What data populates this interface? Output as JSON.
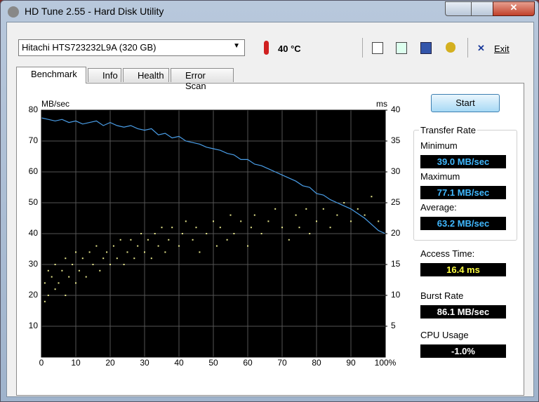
{
  "window": {
    "title": "HD Tune 2.55 - Hard Disk Utility"
  },
  "toolbar": {
    "drive": "Hitachi HTS723232L9A (320 GB)",
    "temperature": "40 °C",
    "exit": "Exit"
  },
  "tabs": [
    "Benchmark",
    "Info",
    "Health",
    "Error Scan"
  ],
  "start": "Start",
  "stats": {
    "transfer_rate": "Transfer Rate",
    "minimum_label": "Minimum",
    "minimum": "39.0 MB/sec",
    "maximum_label": "Maximum",
    "maximum": "77.1 MB/sec",
    "average_label": "Average:",
    "average": "63.2 MB/sec",
    "access_label": "Access Time:",
    "access": "16.4 ms",
    "burst_label": "Burst Rate",
    "burst": "86.1 MB/sec",
    "cpu_label": "CPU Usage",
    "cpu": "-1.0%"
  },
  "chart_data": {
    "type": "line",
    "y_label": "MB/sec",
    "y2_label": "ms",
    "xlim": [
      0,
      100
    ],
    "xticks": [
      0,
      10,
      20,
      30,
      40,
      50,
      60,
      70,
      80,
      90,
      {
        "value": 100,
        "label": "100%"
      }
    ],
    "ylim": [
      0,
      80
    ],
    "yticks": [
      10,
      20,
      30,
      40,
      50,
      60,
      70,
      80
    ],
    "y2lim": [
      0,
      40
    ],
    "y2ticks": [
      5,
      10,
      15,
      20,
      25,
      30,
      35,
      40
    ],
    "grid": true,
    "series": [
      {
        "type": "line",
        "color": "#4a9ee8",
        "x": [
          0,
          2,
          4,
          6,
          8,
          10,
          12,
          14,
          16,
          18,
          20,
          22,
          24,
          26,
          28,
          30,
          32,
          34,
          36,
          38,
          40,
          42,
          44,
          46,
          48,
          50,
          52,
          54,
          56,
          58,
          60,
          62,
          64,
          66,
          68,
          70,
          72,
          74,
          76,
          78,
          80,
          82,
          84,
          86,
          88,
          90,
          92,
          94,
          96,
          98,
          100
        ],
        "values": [
          77.5,
          77,
          76.5,
          77,
          76,
          76.5,
          75.5,
          76,
          76.5,
          75,
          76,
          75,
          74.5,
          75,
          74,
          73.5,
          74,
          72,
          72.5,
          71,
          71.5,
          70,
          69.5,
          69,
          68,
          67.5,
          67,
          66,
          65.5,
          64,
          64,
          62.5,
          62,
          61,
          60,
          59,
          58,
          57,
          55.5,
          55,
          53,
          52.5,
          51,
          50,
          49,
          48,
          46.5,
          45,
          43,
          41,
          40
        ]
      },
      {
        "type": "scatter",
        "color": "#e6e68c",
        "axis": "y2",
        "x": [
          1,
          1,
          2,
          2,
          3,
          4,
          4,
          5,
          6,
          7,
          7,
          8,
          9,
          10,
          10,
          11,
          12,
          13,
          14,
          15,
          16,
          17,
          18,
          19,
          20,
          21,
          22,
          23,
          24,
          25,
          26,
          27,
          28,
          29,
          30,
          31,
          32,
          33,
          34,
          35,
          36,
          37,
          38,
          40,
          41,
          42,
          44,
          45,
          46,
          48,
          50,
          51,
          52,
          54,
          55,
          56,
          58,
          60,
          61,
          62,
          64,
          66,
          68,
          70,
          72,
          74,
          75,
          77,
          78,
          80,
          82,
          84,
          86,
          88,
          90,
          92,
          94,
          96,
          98
        ],
        "values": [
          12,
          9,
          14,
          10,
          13,
          11,
          15,
          12,
          14,
          10,
          16,
          13,
          15,
          12,
          17,
          14,
          16,
          13,
          17,
          15,
          18,
          14,
          16,
          17,
          15,
          18,
          16,
          19,
          15,
          17,
          19,
          16,
          18,
          20,
          17,
          19,
          16,
          20,
          18,
          21,
          17,
          19,
          21,
          18,
          20,
          22,
          19,
          21,
          17,
          20,
          22,
          18,
          21,
          19,
          23,
          20,
          22,
          18,
          21,
          23,
          20,
          22,
          24,
          21,
          19,
          23,
          21,
          24,
          20,
          22,
          24,
          21,
          23,
          25,
          22,
          24,
          23,
          26,
          22
        ]
      }
    ]
  }
}
